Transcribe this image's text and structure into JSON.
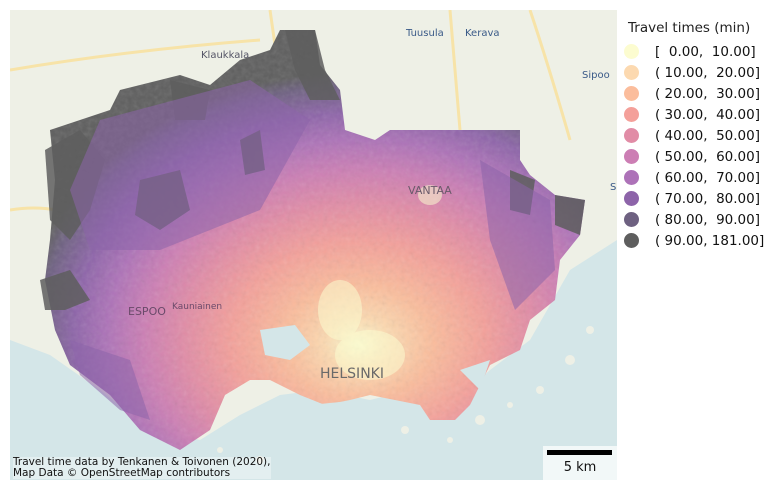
{
  "legend": {
    "title": "Travel times (min)",
    "items": [
      {
        "label": "[  0.00,  10.00]",
        "color": "#fcfcd0"
      },
      {
        "label": "( 10.00,  20.00]",
        "color": "#fcd9b0"
      },
      {
        "label": "( 20.00,  30.00]",
        "color": "#fbbd9c"
      },
      {
        "label": "( 30.00,  40.00]",
        "color": "#f4a09a"
      },
      {
        "label": "( 40.00,  50.00]",
        "color": "#e18ca6"
      },
      {
        "label": "( 50.00,  60.00]",
        "color": "#cc7eb4"
      },
      {
        "label": "( 60.00,  70.00]",
        "color": "#ad72b8"
      },
      {
        "label": "( 70.00,  80.00]",
        "color": "#8d64a9"
      },
      {
        "label": "( 80.00,  90.00]",
        "color": "#6e6181"
      },
      {
        "label": "( 90.00, 181.00]",
        "color": "#5e5e5e"
      }
    ]
  },
  "map_labels": {
    "klaukkala": "Klaukkala",
    "tuusula": "Tuusula",
    "kerava": "Kerava",
    "sipoo": "Sipoo",
    "vantaa": "VANTAA",
    "espoo": "ESPOO",
    "kauniainen": "Kauniainen",
    "helsinki": "HELSINKI",
    "edge_s": "S"
  },
  "attribution": {
    "line1": "Travel time data by Tenkanen & Toivonen (2020),",
    "line2": "Map Data © OpenStreetMap contributors"
  },
  "scalebar": {
    "label": "5 km"
  },
  "colors": {
    "sea": "#d4e6e8",
    "land": "#eef0e6",
    "road": "#f7e3a8"
  }
}
